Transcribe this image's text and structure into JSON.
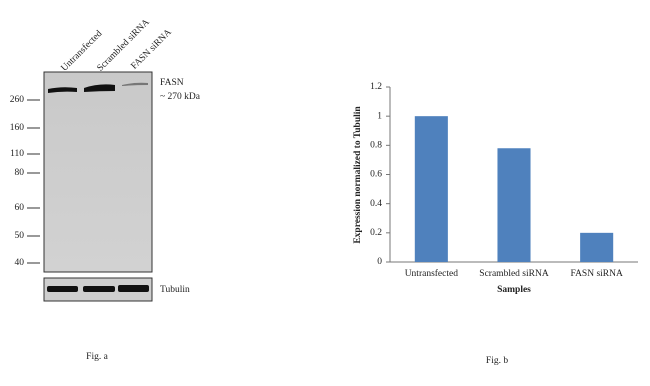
{
  "blot": {
    "lanes": [
      "Untransfected",
      "Scrambled siRNA",
      "FASN siRNA"
    ],
    "markers": [
      260,
      160,
      110,
      80,
      60,
      50,
      40
    ],
    "target": "FASN",
    "size": "~ 270 kDa",
    "loading_control": "Tubulin",
    "caption": "Fig. a"
  },
  "chart_data": {
    "type": "bar",
    "categories": [
      "Untransfected",
      "Scrambled siRNA",
      "FASN siRNA"
    ],
    "values": [
      1,
      0.78,
      0.2
    ],
    "color": "#4f81bd",
    "x_label": "Samples",
    "y_label": "Expression normalized to Tubulin",
    "ylim": [
      0,
      1.2
    ],
    "yticks": [
      0,
      0.2,
      0.4,
      0.6,
      0.8,
      1,
      1.2
    ],
    "grid": false,
    "caption": "Fig. b"
  }
}
